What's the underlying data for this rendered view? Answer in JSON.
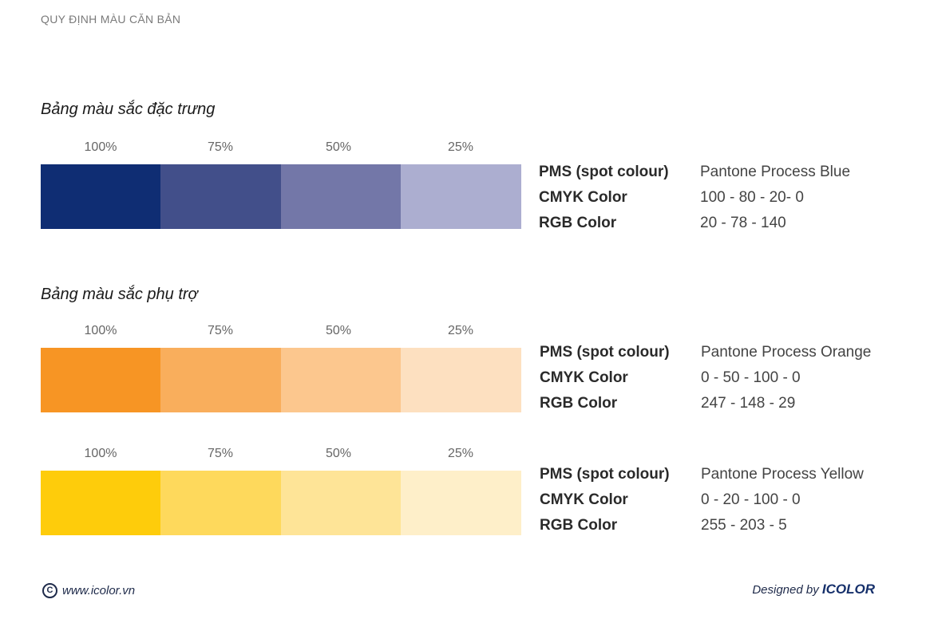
{
  "header": {
    "title": "QUY ĐỊNH MÀU CĂN BẢN"
  },
  "sections": [
    {
      "title": "Bảng màu sắc đặc trưng"
    },
    {
      "title": "Bảng màu sắc phụ trợ"
    }
  ],
  "palettes": [
    {
      "percent_labels": [
        "100%",
        "75%",
        "50%",
        "25%"
      ],
      "swatches": [
        "#0f2d73",
        "#424f8a",
        "#7377a8",
        "#acaed0"
      ],
      "specs": [
        {
          "label": "PMS (spot colour)",
          "value": "Pantone Process Blue"
        },
        {
          "label": "CMYK Color",
          "value": "100 - 80 - 20- 0"
        },
        {
          "label": "RGB Color",
          "value": "20 - 78 - 140"
        }
      ]
    },
    {
      "percent_labels": [
        "100%",
        "75%",
        "50%",
        "25%"
      ],
      "swatches": [
        "#f79524",
        "#f9ae5c",
        "#fcc78e",
        "#fde0c0"
      ],
      "specs": [
        {
          "label": "PMS (spot colour)",
          "value": "Pantone Process Orange"
        },
        {
          "label": "CMYK Color",
          "value": "0 - 50 - 100 - 0"
        },
        {
          "label": "RGB Color",
          "value": "247 - 148 - 29"
        }
      ]
    },
    {
      "percent_labels": [
        "100%",
        "75%",
        "50%",
        "25%"
      ],
      "swatches": [
        "#fecc0b",
        "#fed95c",
        "#fee497",
        "#feefc9"
      ],
      "specs": [
        {
          "label": "PMS (spot colour)",
          "value": "Pantone Process Yellow"
        },
        {
          "label": "CMYK Color",
          "value": "0 - 20 - 100 - 0"
        },
        {
          "label": "RGB Color",
          "value": "255 - 203 - 5"
        }
      ]
    }
  ],
  "footer": {
    "copyright_symbol": "C",
    "website": "www.icolor.vn",
    "designed_by": "Designed by",
    "brand": "ICOLOR"
  }
}
